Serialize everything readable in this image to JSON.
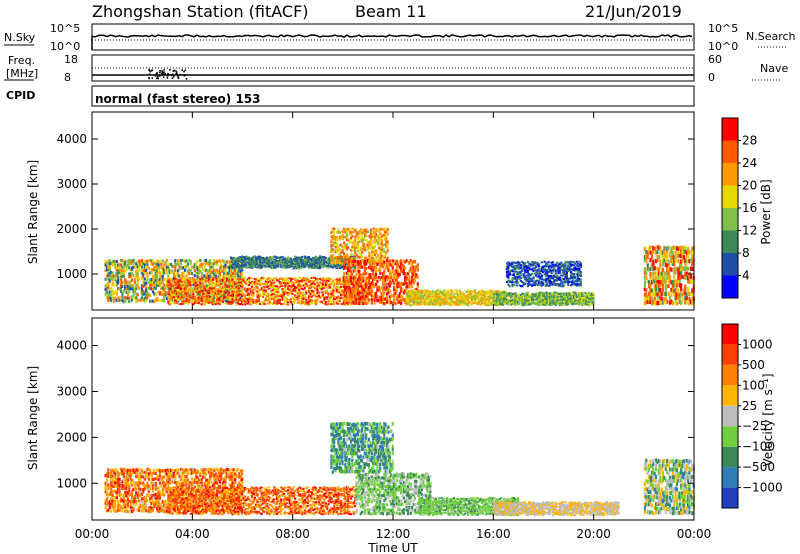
{
  "header": {
    "station": "Zhongshan Station (fitACF)",
    "beam": "Beam 11",
    "date": "21/Jun/2019"
  },
  "nsky_panel": {
    "left_label": "N.Sky",
    "right_label": "N.Search",
    "left_ticks": [
      "10^5",
      "10^0"
    ],
    "right_ticks": [
      "10^5",
      "10^0"
    ]
  },
  "freq_panel": {
    "left_label_1": "Freq.",
    "left_label_2": "[MHz]",
    "right_label": "Nave",
    "left_ticks": [
      "18",
      "8"
    ],
    "right_ticks": [
      "60",
      "0"
    ]
  },
  "cpid_panel": {
    "label": "CPID",
    "text": "normal (fast stereo) 153"
  },
  "colors": {
    "power": [
      "#0000ff",
      "#1f50a8",
      "#3c8a5a",
      "#7fc04a",
      "#e4d800",
      "#ff9a00",
      "#ff5a00",
      "#ff0000"
    ],
    "velocity": [
      "#1f3fbf",
      "#2f7fb6",
      "#3c8a5a",
      "#6fcf3f",
      "#bdbdbd",
      "#ffb400",
      "#ff8000",
      "#ff4000",
      "#ff0000"
    ]
  },
  "chart_data": [
    {
      "type": "heatmap",
      "name": "power",
      "ylabel": "Slant Range [km]",
      "ylim": [
        200,
        4600
      ],
      "y_ticks": [
        1000,
        2000,
        3000,
        4000
      ],
      "x_ticks": [
        "00:00",
        "04:00",
        "08:00",
        "12:00",
        "16:00",
        "20:00",
        "00:00"
      ],
      "xlim_hours": [
        0,
        24
      ],
      "colorbar_label": "Power [dB]",
      "colorbar_ticks": [
        "4",
        "8",
        "12",
        "16",
        "20",
        "24",
        "28"
      ],
      "colorbar_range": [
        0,
        32
      ],
      "blobs": [
        {
          "t0": 0.5,
          "t1": 6.0,
          "r0": 350,
          "r1": 1300,
          "v0": 6,
          "v1": 26
        },
        {
          "t0": 3.0,
          "t1": 11.0,
          "r0": 300,
          "r1": 900,
          "v0": 16,
          "v1": 32
        },
        {
          "t0": 5.5,
          "t1": 10.5,
          "r0": 1100,
          "r1": 1350,
          "v0": 4,
          "v1": 14
        },
        {
          "t0": 9.5,
          "t1": 11.8,
          "r0": 1200,
          "r1": 2000,
          "v0": 14,
          "v1": 28
        },
        {
          "t0": 10.0,
          "t1": 13.0,
          "r0": 300,
          "r1": 1300,
          "v0": 20,
          "v1": 32
        },
        {
          "t0": 12.5,
          "t1": 16.5,
          "r0": 280,
          "r1": 600,
          "v0": 14,
          "v1": 24
        },
        {
          "t0": 16.0,
          "t1": 20.0,
          "r0": 280,
          "r1": 550,
          "v0": 8,
          "v1": 18
        },
        {
          "t0": 16.5,
          "t1": 19.5,
          "r0": 700,
          "r1": 1250,
          "v0": 2,
          "v1": 10
        },
        {
          "t0": 22.0,
          "t1": 24.0,
          "r0": 300,
          "r1": 1600,
          "v0": 10,
          "v1": 32
        }
      ]
    },
    {
      "type": "heatmap",
      "name": "velocity",
      "ylabel": "Slant Range [km]",
      "ylim": [
        200,
        4600
      ],
      "y_ticks": [
        1000,
        2000,
        3000,
        4000
      ],
      "x_ticks": [
        "00:00",
        "04:00",
        "08:00",
        "12:00",
        "16:00",
        "20:00",
        "00:00"
      ],
      "xlim_hours": [
        0,
        24
      ],
      "xlabel": "Time UT",
      "colorbar_label": "Velocity [m s⁻¹]",
      "colorbar_ticks": [
        "1000",
        "500",
        "100",
        "25",
        "−25",
        "−100",
        "−500",
        "−1000"
      ],
      "colorbar_range": [
        -1200,
        1200
      ],
      "blobs": [
        {
          "t0": 0.5,
          "t1": 6.0,
          "r0": 350,
          "r1": 1300,
          "v0": 100,
          "v1": 1000
        },
        {
          "t0": 3.0,
          "t1": 10.5,
          "r0": 300,
          "r1": 900,
          "v0": 200,
          "v1": 1100
        },
        {
          "t0": 9.5,
          "t1": 12.0,
          "r0": 1200,
          "r1": 2300,
          "v0": -900,
          "v1": -100
        },
        {
          "t0": 10.5,
          "t1": 13.5,
          "r0": 300,
          "r1": 1200,
          "v0": -600,
          "v1": 50
        },
        {
          "t0": 13.0,
          "t1": 17.0,
          "r0": 280,
          "r1": 650,
          "v0": -500,
          "v1": -100
        },
        {
          "t0": 16.0,
          "t1": 21.0,
          "r0": 280,
          "r1": 550,
          "v0": 30,
          "v1": 200
        },
        {
          "t0": 22.0,
          "t1": 24.0,
          "r0": 300,
          "r1": 1500,
          "v0": -800,
          "v1": 400
        }
      ]
    }
  ]
}
